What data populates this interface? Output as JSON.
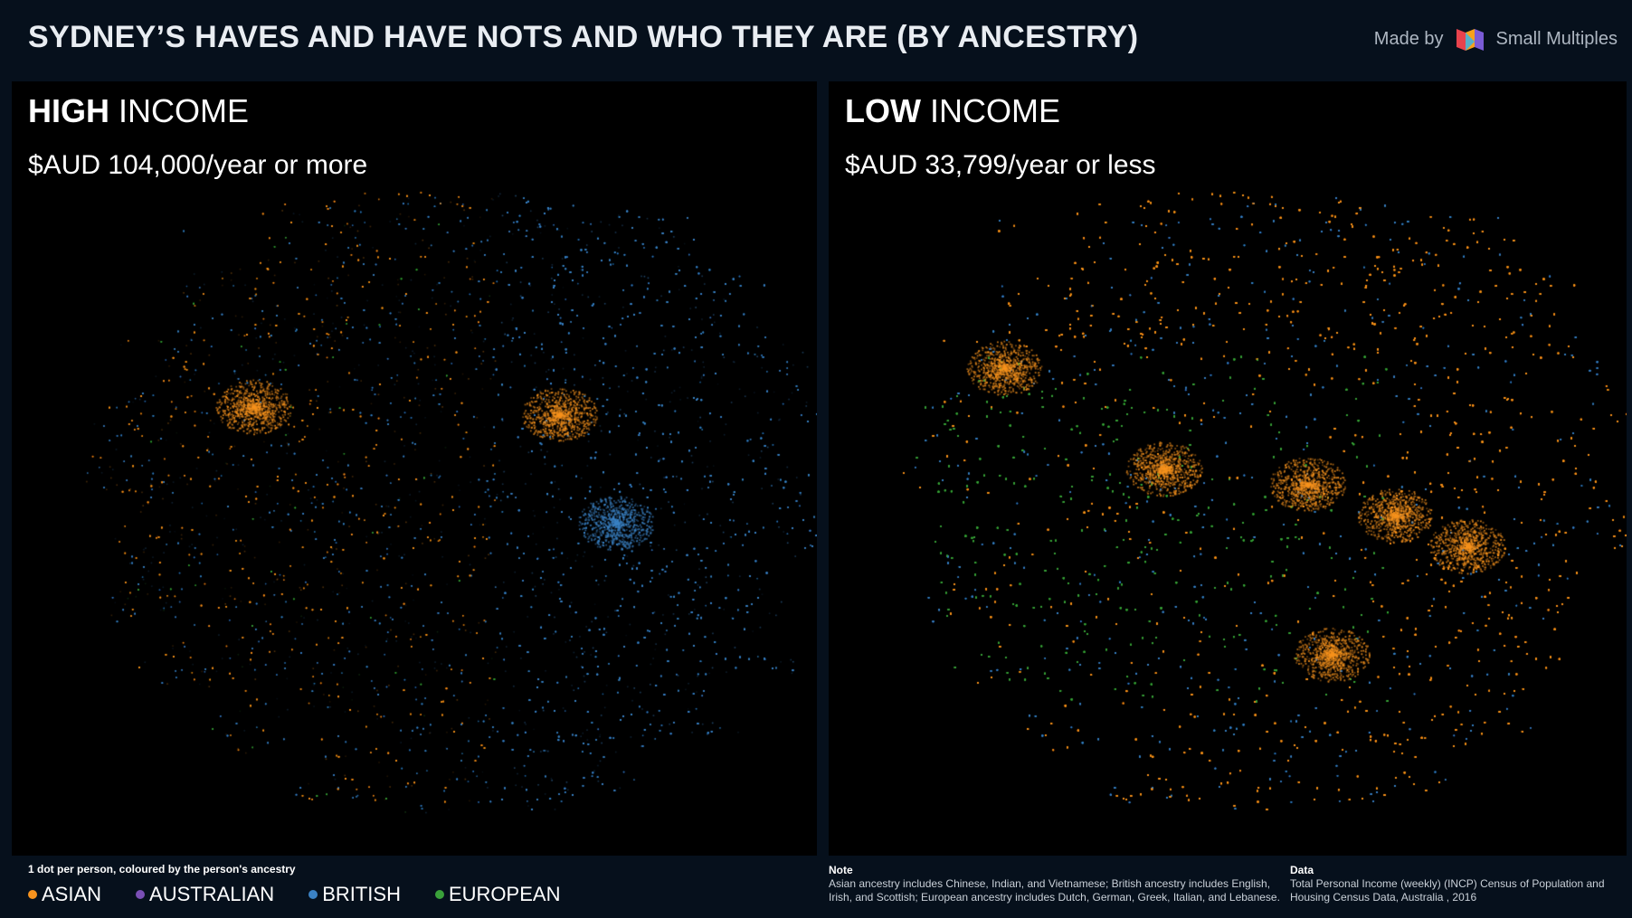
{
  "title": "SYDNEY’S HAVES AND HAVE NOTS AND WHO THEY ARE (BY ANCESTRY)",
  "credit": {
    "prefix": "Made by",
    "brand": "Small Multiples",
    "logo_icon": "small-multiples-logo-icon"
  },
  "panels": [
    {
      "strong": "HIGH",
      "light": " INCOME",
      "subtitle": "$AUD 104,000/year or more"
    },
    {
      "strong": "LOW",
      "light": " INCOME",
      "subtitle": "$AUD 33,799/year or less"
    }
  ],
  "legend": {
    "caption": "1 dot per person, coloured by the person's ancestry",
    "items": [
      {
        "label": "ASIAN",
        "color": "#f7931e"
      },
      {
        "label": "AUSTRALIAN",
        "color": "#7a4fb5"
      },
      {
        "label": "BRITISH",
        "color": "#3b82c4"
      },
      {
        "label": "EUROPEAN",
        "color": "#3aa13a"
      }
    ]
  },
  "note": {
    "heading": "Note",
    "text": "Asian ancestry includes Chinese, Indian, and Vietnamese; British ancestry includes English, Irish, and Scottish; European ancestry includes Dutch, German, Greek, Italian, and Lebanese."
  },
  "data": {
    "heading": "Data",
    "text": "Total Personal Income (weekly) (INCP) Census of Population and Housing Census Data, Australia , 2016"
  }
}
